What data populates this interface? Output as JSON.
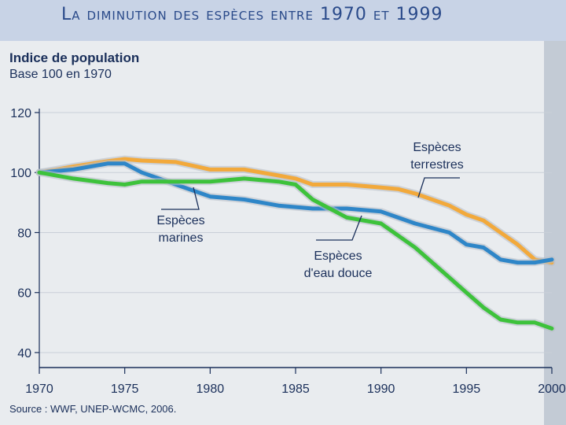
{
  "page": {
    "title": "La diminution des espèces entre 1970 et 1999"
  },
  "source": "Source : WWF, UNEP-WCMC, 2006.",
  "colors": {
    "terrestres": "#f2a93b",
    "marines": "#2e86c8",
    "eau_douce": "#3dc23b",
    "text": "#1a2f5a"
  },
  "chart_data": {
    "type": "line",
    "title": "La diminution des espèces entre 1970 et 1999",
    "ylabel": "Indice de population",
    "ylabel_sub": "Base 100 en 1970",
    "xlabel": "",
    "xlim": [
      1970,
      2000
    ],
    "ylim": [
      35,
      120
    ],
    "x_ticks": [
      "1970",
      "1975",
      "1980",
      "1985",
      "1990",
      "1995",
      "2000"
    ],
    "y_ticks": [
      "120",
      "100",
      "80",
      "60",
      "40"
    ],
    "grid": true,
    "series": [
      {
        "key": "terrestres",
        "name": "Espèces terrestres",
        "label_lines": [
          "Espèces",
          "terrestres"
        ],
        "x": [
          1970,
          1972,
          1974,
          1975,
          1976,
          1978,
          1980,
          1982,
          1984,
          1985,
          1986,
          1988,
          1990,
          1991,
          1992,
          1994,
          1995,
          1996,
          1997,
          1998,
          1999,
          2000
        ],
        "values": [
          100,
          102,
          103.8,
          104.5,
          104,
          103.5,
          101,
          101,
          99,
          98,
          96,
          96,
          95,
          94.5,
          93,
          89,
          86,
          84,
          80,
          76,
          71,
          70
        ]
      },
      {
        "key": "marines",
        "name": "Espèces marines",
        "label_lines": [
          "Espèces",
          "marines"
        ],
        "x": [
          1970,
          1972,
          1974,
          1975,
          1976,
          1978,
          1980,
          1982,
          1984,
          1986,
          1988,
          1990,
          1992,
          1994,
          1995,
          1996,
          1997,
          1998,
          1999,
          2000
        ],
        "values": [
          100,
          101,
          103,
          103,
          100,
          96,
          92,
          91,
          89,
          88,
          88,
          87,
          83,
          80,
          76,
          75,
          71,
          70,
          70,
          71
        ]
      },
      {
        "key": "eau_douce",
        "name": "Espèces d'eau douce",
        "label_lines": [
          "Espèces",
          "d'eau douce"
        ],
        "x": [
          1970,
          1972,
          1974,
          1975,
          1976,
          1978,
          1980,
          1982,
          1984,
          1985,
          1986,
          1988,
          1990,
          1992,
          1994,
          1995,
          1996,
          1997,
          1998,
          1999,
          2000
        ],
        "values": [
          100,
          98,
          96.5,
          96,
          97,
          97,
          97,
          98,
          97,
          96,
          91,
          85,
          83,
          75,
          65,
          60,
          55,
          51,
          50,
          50,
          48
        ]
      }
    ]
  }
}
